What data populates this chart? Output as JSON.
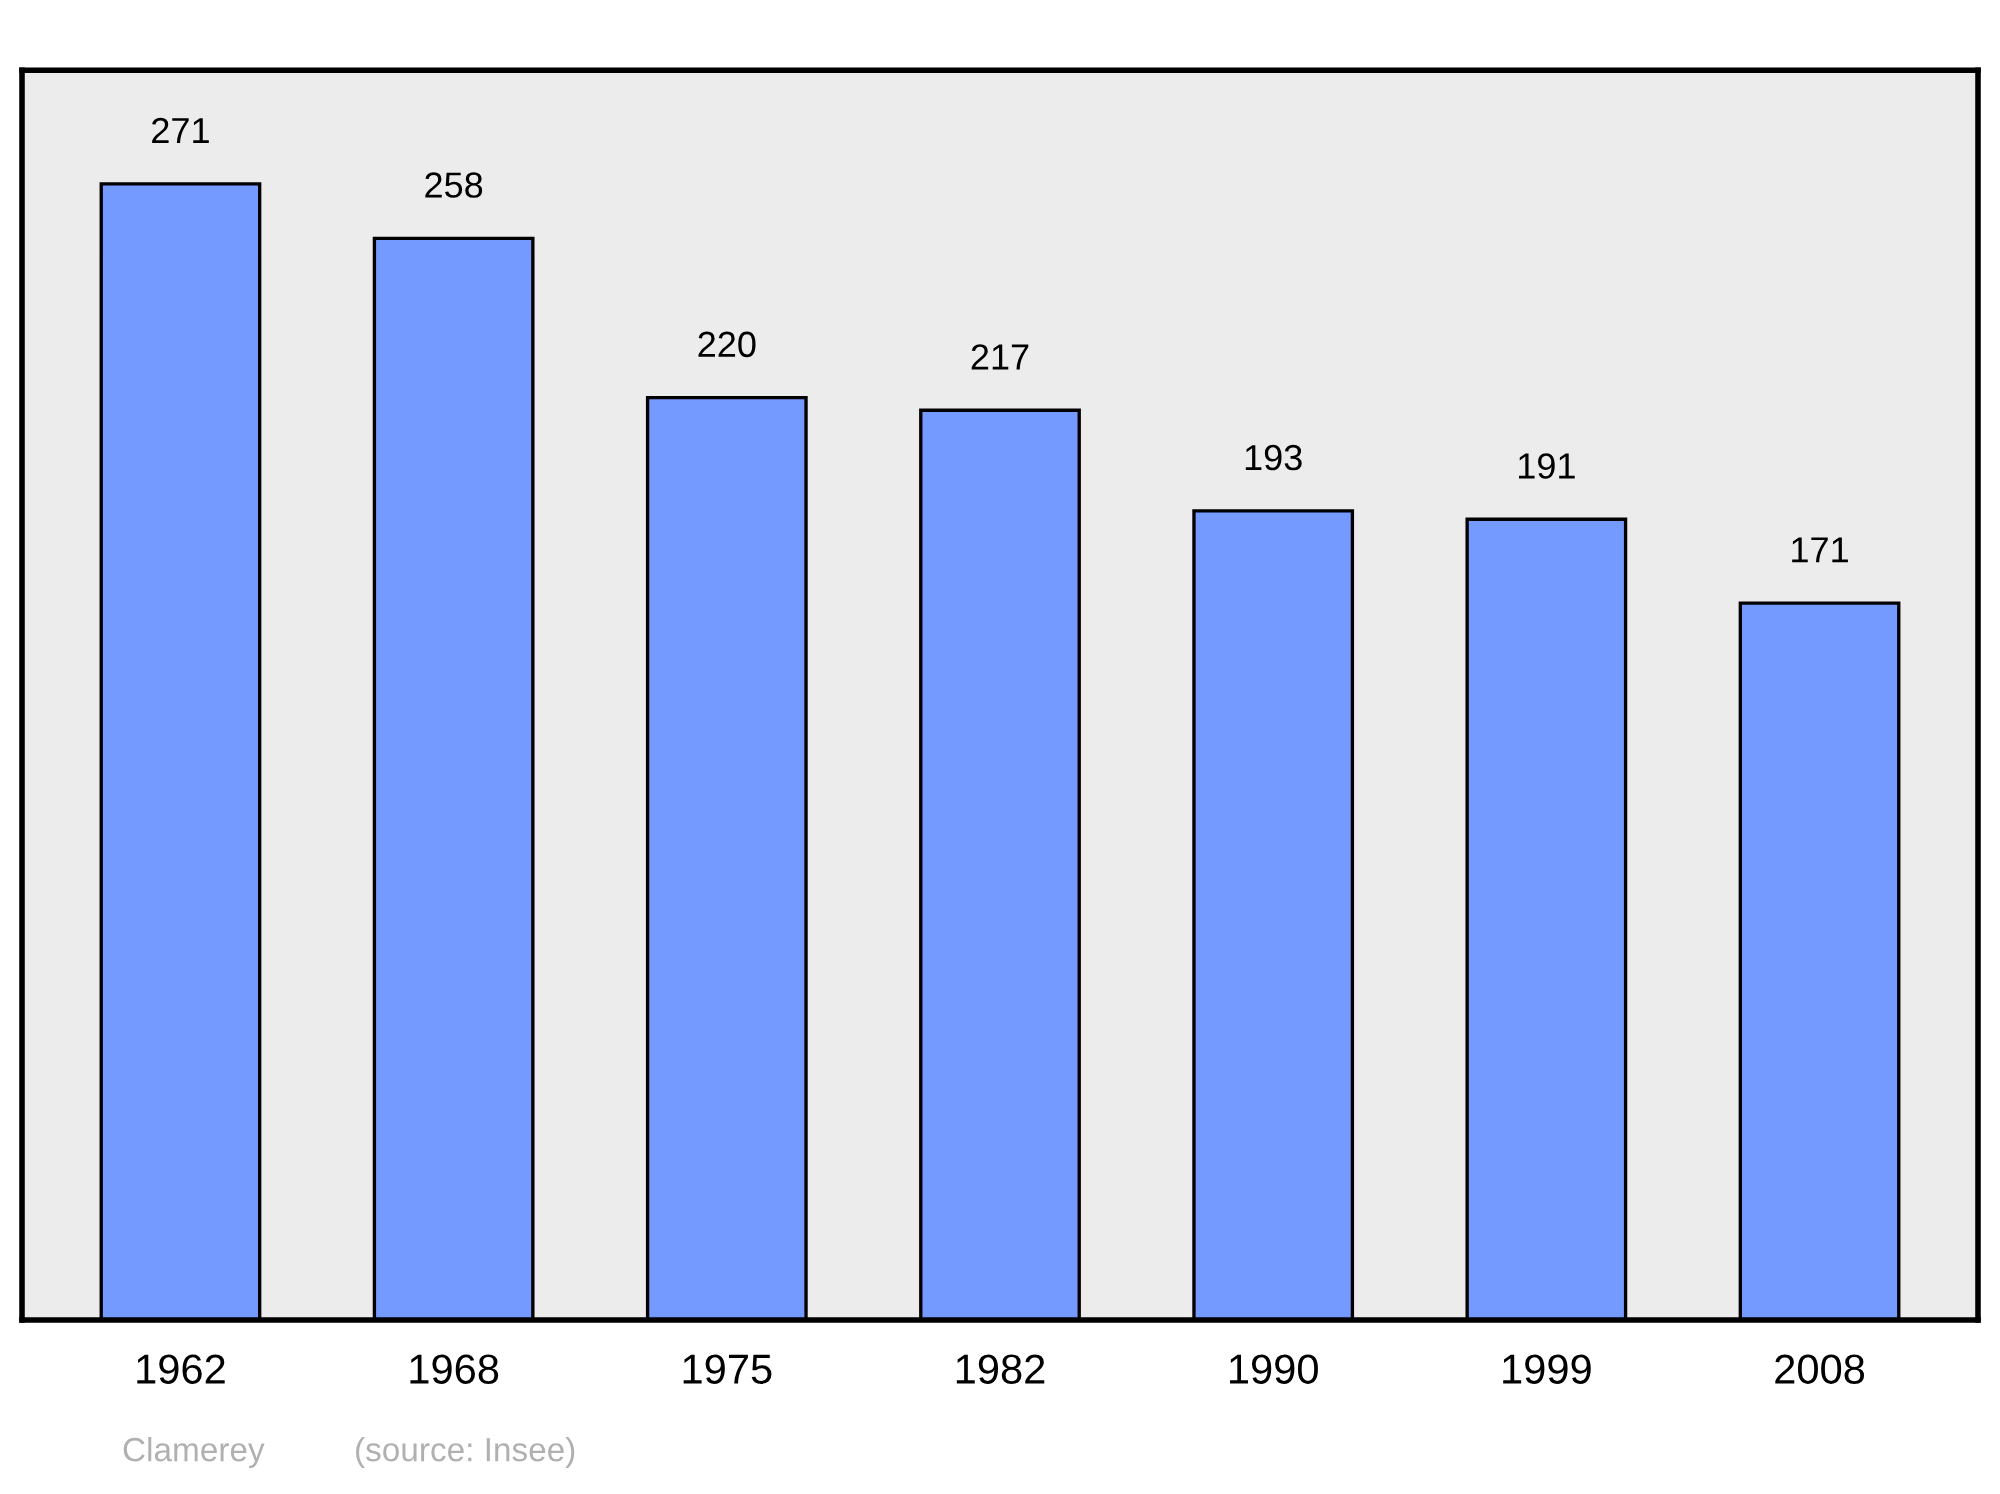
{
  "chart_data": {
    "type": "bar",
    "categories": [
      "1962",
      "1968",
      "1975",
      "1982",
      "1990",
      "1999",
      "2008"
    ],
    "values": [
      271,
      258,
      220,
      217,
      193,
      191,
      171
    ],
    "color": "#7499ff",
    "data_labels": true,
    "grid": false,
    "legend": false,
    "tick_labels": "x",
    "annotations": [
      "Clamerey",
      "(source: Insee)"
    ]
  }
}
